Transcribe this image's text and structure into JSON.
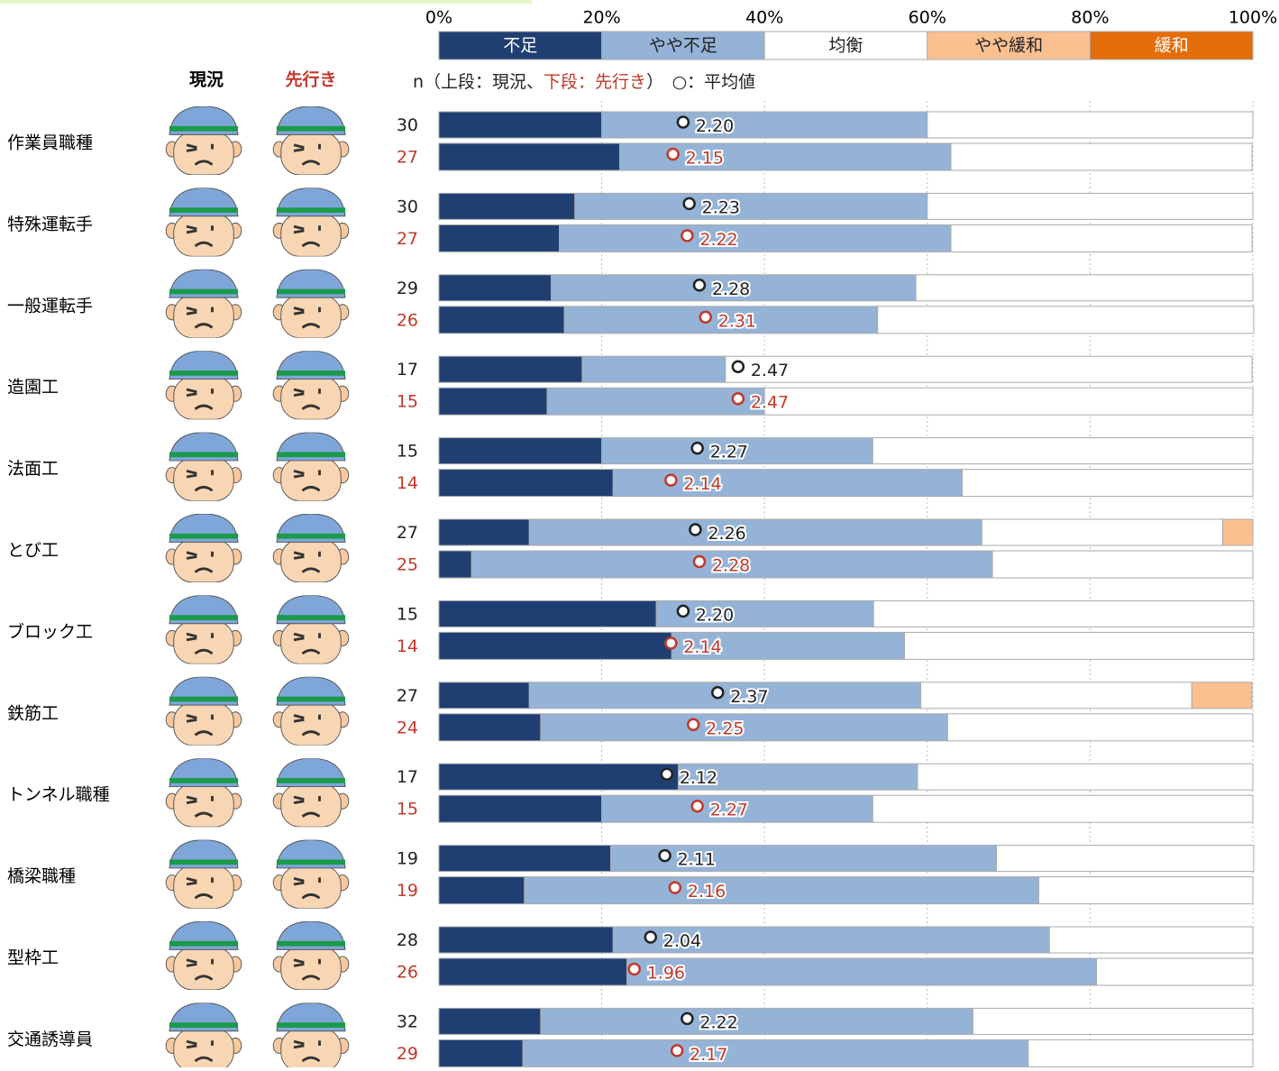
{
  "chart_data": {
    "type": "bar",
    "stacked": true,
    "orientation": "horizontal",
    "xticks": [
      {
        "value": 0,
        "label": "0%"
      },
      {
        "value": 20,
        "label": "20%"
      },
      {
        "value": 40,
        "label": "40%"
      },
      {
        "value": 60,
        "label": "60%"
      },
      {
        "value": 80,
        "label": "80%"
      },
      {
        "value": 100,
        "label": "100%"
      }
    ],
    "xlim": [
      0,
      100
    ],
    "mean_scale": [
      1,
      5
    ],
    "column_headers": {
      "current": "現況",
      "outlook": "先行き"
    },
    "note": [
      "n（上段：現況、",
      "下段：先行き",
      "）　○：平均値"
    ],
    "categories": [
      "作業員職種",
      "特殊運転手",
      "一般運転手",
      "造園工",
      "法面工",
      "とび工",
      "ブロック工",
      "鉄筋工",
      "トンネル職種",
      "橋梁職種",
      "型枠工",
      "交通誘導員"
    ],
    "series": [
      {
        "name": "不足",
        "color": "#1f3f73",
        "current": [
          20,
          16.7,
          13.8,
          17.6,
          20,
          11.1,
          26.7,
          11.1,
          29.4,
          21.1,
          21.4,
          12.5
        ],
        "outlook": [
          22.2,
          14.8,
          15.4,
          13.3,
          21.4,
          4,
          28.6,
          12.5,
          20,
          10.5,
          23.1,
          10.3
        ]
      },
      {
        "name": "やや不足",
        "color": "#95b3d7",
        "current": [
          40,
          43.3,
          44.8,
          17.6,
          33.3,
          55.6,
          26.7,
          48.1,
          29.4,
          47.4,
          53.6,
          53.1
        ],
        "outlook": [
          40.7,
          48.1,
          38.5,
          26.7,
          42.9,
          64,
          28.6,
          50,
          33.3,
          63.2,
          57.7,
          62.1
        ]
      },
      {
        "name": "均衡",
        "color": "#ffffff",
        "current": [
          40,
          40,
          41.4,
          64.7,
          46.7,
          29.6,
          46.7,
          33.3,
          41.2,
          31.6,
          25,
          34.4
        ],
        "outlook": [
          37,
          37,
          46.2,
          60,
          35.7,
          32,
          42.9,
          37.5,
          46.7,
          26.3,
          19.2,
          27.6
        ]
      },
      {
        "name": "やや緩和",
        "color": "#fac090",
        "current": [
          0,
          0,
          0,
          0,
          0,
          3.7,
          0,
          7.4,
          0,
          0,
          0,
          0
        ],
        "outlook": [
          0,
          0,
          0,
          0,
          0,
          0,
          0,
          0,
          0,
          0,
          0,
          0
        ]
      },
      {
        "name": "緩和",
        "color": "#e46c0a",
        "current": [
          0,
          0,
          0,
          0,
          0,
          0,
          0,
          0,
          0,
          0,
          0,
          0
        ],
        "outlook": [
          0,
          0,
          0,
          0,
          0,
          0,
          0,
          0,
          0,
          0,
          0,
          0
        ]
      }
    ],
    "n_current": [
      30,
      30,
      29,
      17,
      15,
      27,
      15,
      27,
      17,
      19,
      28,
      32
    ],
    "n_outlook": [
      27,
      27,
      26,
      15,
      14,
      25,
      14,
      24,
      15,
      19,
      26,
      29
    ],
    "mean_current": [
      2.2,
      2.23,
      2.28,
      2.47,
      2.27,
      2.26,
      2.2,
      2.37,
      2.12,
      2.11,
      2.04,
      2.22
    ],
    "mean_current_labels": [
      "2.20",
      "2.23",
      "2.28",
      "2.47",
      "2.27",
      "2.26",
      "2.20",
      "2.37",
      "2.12",
      "2.11",
      "2.04",
      "2.22"
    ],
    "mean_outlook": [
      2.15,
      2.22,
      2.31,
      2.47,
      2.14,
      2.28,
      2.14,
      2.25,
      2.27,
      2.16,
      1.96,
      2.17
    ],
    "mean_outlook_labels": [
      "2.15",
      "2.22",
      "2.31",
      "2.47",
      "2.14",
      "2.28",
      "2.14",
      "2.25",
      "2.27",
      "2.16",
      "1.96",
      "2.17"
    ]
  }
}
